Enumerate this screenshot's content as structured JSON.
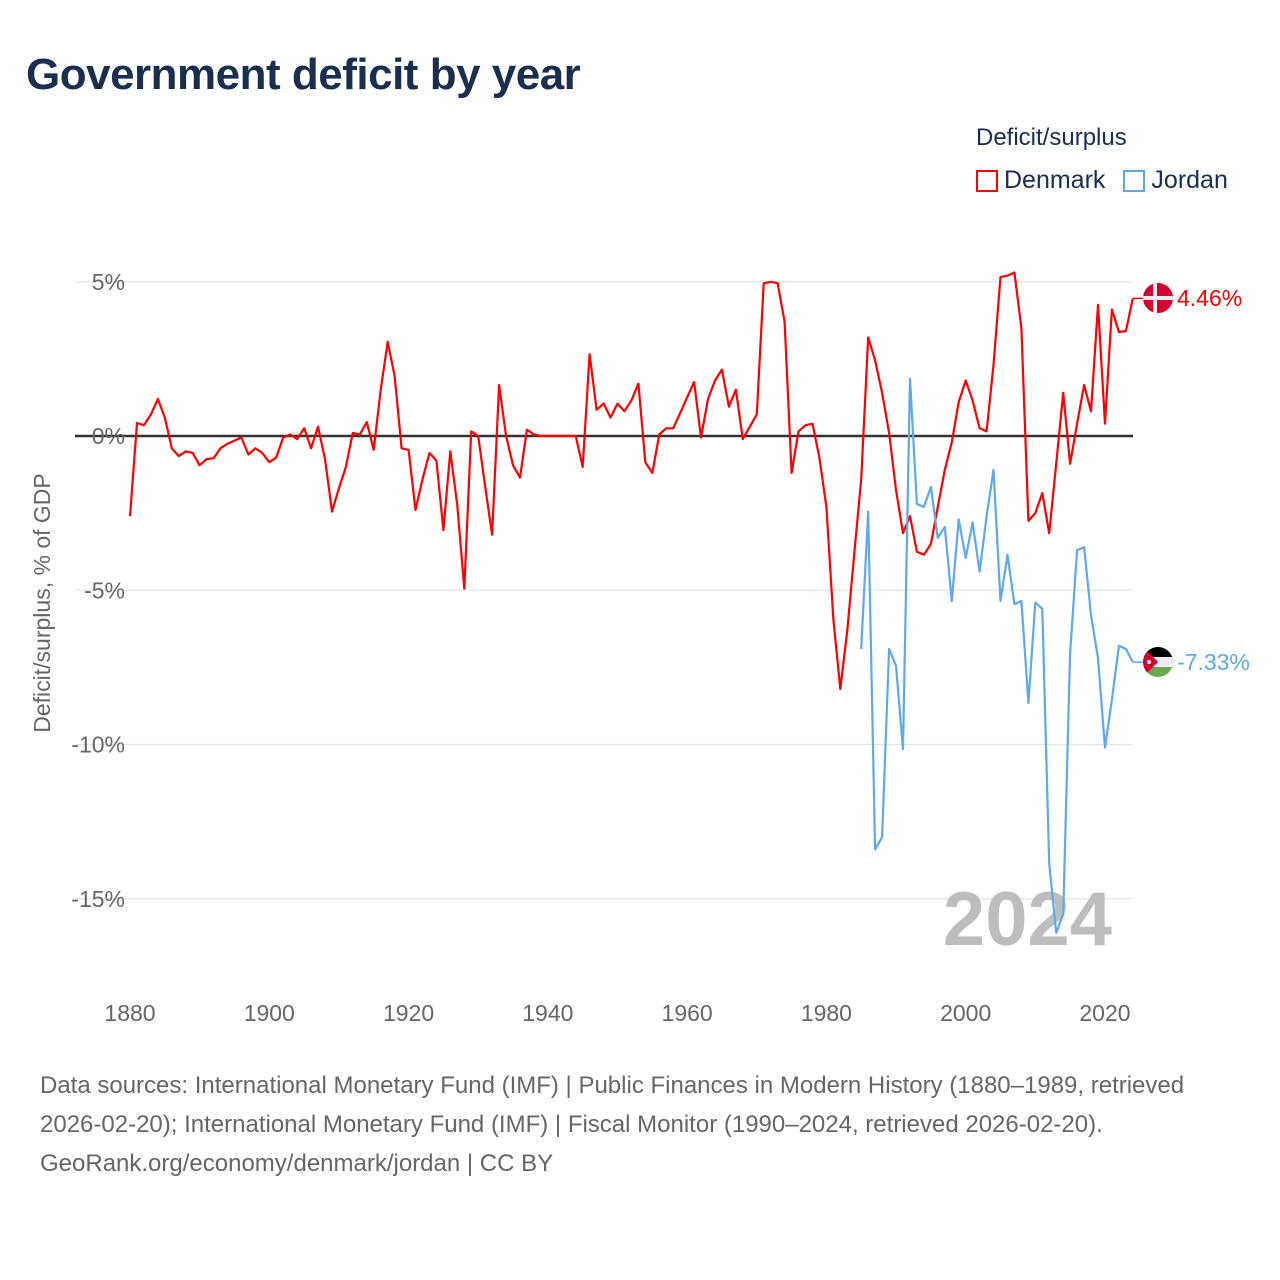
{
  "title": "Government deficit by year",
  "legend_title": "Deficit/surplus",
  "source_text": "Data sources: International Monetary Fund (IMF) | Public Finances in Modern History (1880–1989, retrieved 2026-02-20); International Monetary Fund (IMF) | Fiscal Monitor (1990–2024, retrieved 2026-02-20).",
  "credit": "GeoRank.org/economy/denmark/jordan | CC BY",
  "chart_data": {
    "type": "line",
    "title": "Government deficit by year",
    "xlabel": "",
    "ylabel": "Deficit/surplus, % of GDP",
    "xlim": [
      1880,
      2024
    ],
    "ylim": [
      -17,
      6
    ],
    "x_ticks": [
      1880,
      1900,
      1920,
      1940,
      1960,
      1980,
      2000,
      2020
    ],
    "x_tick_labels": [
      "1880",
      "1900",
      "1920",
      "1940",
      "1960",
      "1980",
      "2000",
      "2020"
    ],
    "y_ticks": [
      5,
      0,
      -5,
      -10,
      -15
    ],
    "y_tick_labels": [
      "5%",
      "0%",
      "-5%",
      "-10%",
      "-15%"
    ],
    "grid": true,
    "legend_position": "top-right",
    "year_watermark": "2024",
    "series": [
      {
        "name": "Denmark",
        "color": "#ff0000",
        "end_label": "4.46%",
        "start_year": 1880,
        "values": [
          -2.6,
          0.42,
          0.35,
          0.7,
          1.2,
          0.6,
          -0.4,
          -0.65,
          -0.5,
          -0.55,
          -0.95,
          -0.75,
          -0.72,
          -0.4,
          -0.25,
          -0.15,
          -0.05,
          -0.6,
          -0.4,
          -0.55,
          -0.85,
          -0.7,
          -0.05,
          0.05,
          -0.1,
          0.25,
          -0.4,
          0.3,
          -0.75,
          -2.45,
          -1.7,
          -1.0,
          0.1,
          0.05,
          0.45,
          -0.45,
          1.5,
          3.05,
          1.95,
          -0.4,
          -0.45,
          -2.4,
          -1.4,
          -0.55,
          -0.8,
          -3.05,
          -0.5,
          -2.25,
          -4.95,
          0.15,
          0.0,
          -1.65,
          -3.2,
          1.65,
          0.0,
          -0.95,
          -1.35,
          0.2,
          0.05,
          0,
          0,
          0,
          0,
          0,
          0,
          -1.0,
          2.65,
          0.85,
          1.05,
          0.6,
          1.05,
          0.8,
          1.15,
          1.7,
          -0.85,
          -1.2,
          0.05,
          0.25,
          0.25,
          0.75,
          1.25,
          1.75,
          -0.05,
          1.2,
          1.8,
          2.15,
          0.95,
          1.5,
          -0.1,
          0.3,
          0.7,
          4.95,
          5.0,
          4.95,
          3.7,
          -1.2,
          0.15,
          0.35,
          0.4,
          -0.7,
          -2.3,
          -5.95,
          -8.2,
          -6.3,
          -3.8,
          -1.4,
          3.2,
          2.45,
          1.4,
          0.1,
          -1.75,
          -3.15,
          -2.6,
          -3.75,
          -3.85,
          -3.5,
          -2.3,
          -1.1,
          -0.2,
          1.1,
          1.8,
          1.15,
          0.25,
          0.15,
          2.3,
          5.15,
          5.2,
          5.3,
          3.5,
          -2.75,
          -2.5,
          -1.85,
          -3.15,
          -0.9,
          1.4,
          -0.9,
          0.4,
          1.65,
          0.8,
          4.25,
          0.4,
          4.1,
          3.37,
          3.4,
          4.46
        ]
      },
      {
        "name": "Jordan",
        "color": "#5ea8ee",
        "end_label": "-7.33%",
        "start_year": 1985,
        "values": [
          -6.9,
          -2.45,
          -13.4,
          -13.0,
          -6.9,
          -7.45,
          -10.15,
          1.85,
          -2.2,
          -2.3,
          -1.65,
          -3.3,
          -2.95,
          -5.35,
          -2.7,
          -3.95,
          -2.8,
          -4.4,
          -2.6,
          -1.1,
          -5.35,
          -3.85,
          -5.45,
          -5.35,
          -8.65,
          -5.4,
          -5.6,
          -13.85,
          -16.1,
          -15.5,
          -7.05,
          -3.7,
          -3.6,
          -5.8,
          -7.2,
          -10.1,
          -8.55,
          -6.8,
          -6.9,
          -7.33
        ]
      }
    ]
  }
}
